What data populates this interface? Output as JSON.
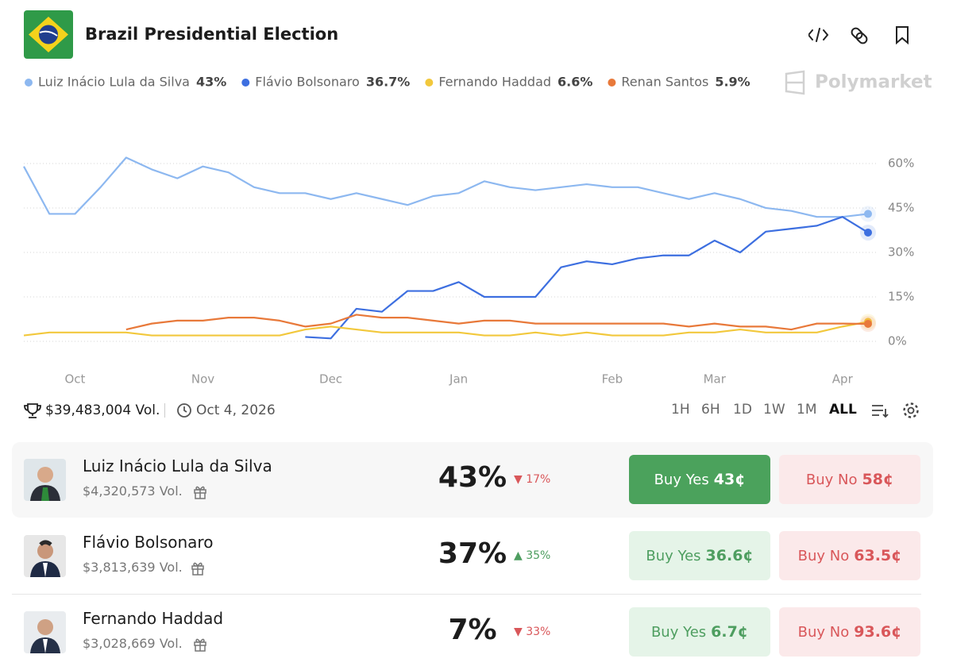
{
  "header": {
    "title": "Brazil Presidential Election",
    "brand": "Polymarket"
  },
  "chart_data": {
    "type": "line",
    "categories": [
      null,
      null,
      "Oct",
      null,
      null,
      null,
      null,
      "Nov",
      null,
      null,
      null,
      null,
      "Dec",
      null,
      null,
      null,
      null,
      "Jan",
      null,
      null,
      null,
      null,
      null,
      "Feb",
      null,
      null,
      null,
      "Mar",
      null,
      null,
      null,
      null,
      "Apr",
      null
    ],
    "series": [
      {
        "name": "Luiz Inácio Lula da Silva",
        "color": "#8db8f0",
        "value_label": "43%",
        "values": [
          59,
          43,
          43,
          52,
          62,
          58,
          55,
          59,
          57,
          52,
          50,
          50,
          48,
          50,
          48,
          46,
          49,
          50,
          54,
          52,
          51,
          52,
          53,
          52,
          52,
          50,
          48,
          50,
          48,
          45,
          44,
          42,
          42,
          43
        ]
      },
      {
        "name": "Flávio Bolsonaro",
        "color": "#3d6fe0",
        "value_label": "36.7%",
        "values": [
          null,
          null,
          null,
          null,
          null,
          null,
          null,
          null,
          null,
          null,
          null,
          1.5,
          1,
          11,
          10,
          17,
          17,
          20,
          15,
          15,
          15,
          25,
          27,
          26,
          28,
          29,
          29,
          34,
          30,
          37,
          38,
          39,
          42,
          36.7
        ]
      },
      {
        "name": "Fernando Haddad",
        "color": "#f2c83c",
        "value_label": "6.6%",
        "values": [
          2,
          3,
          3,
          3,
          3,
          2,
          2,
          2,
          2,
          2,
          2,
          4,
          5,
          4,
          3,
          3,
          3,
          3,
          2,
          2,
          3,
          2,
          3,
          2,
          2,
          2,
          3,
          3,
          4,
          3,
          3,
          3,
          5,
          6.6
        ]
      },
      {
        "name": "Renan Santos",
        "color": "#e8793a",
        "value_label": "5.9%",
        "values": [
          null,
          null,
          null,
          null,
          4,
          6,
          7,
          7,
          8,
          8,
          7,
          5,
          6,
          9,
          8,
          8,
          7,
          6,
          7,
          7,
          6,
          6,
          6,
          6,
          6,
          6,
          5,
          6,
          5,
          5,
          4,
          6,
          6,
          5.9
        ]
      }
    ],
    "ylim": [
      -2,
      64
    ],
    "yticks": [
      {
        "value": 0,
        "label": "0%"
      },
      {
        "value": 15,
        "label": "15%"
      },
      {
        "value": 30,
        "label": "30%"
      },
      {
        "value": 45,
        "label": "45%"
      },
      {
        "value": 60,
        "label": "60%"
      }
    ],
    "grid": true
  },
  "stats": {
    "volume": "$39,483,004 Vol.",
    "date": "Oct 4, 2026",
    "ranges": [
      "1H",
      "6H",
      "1D",
      "1W",
      "1M",
      "ALL"
    ]
  },
  "outcomes": [
    {
      "name": "Luiz Inácio Lula da Silva",
      "volume": "$4,320,573 Vol.",
      "chance": "43%",
      "change": "17%",
      "yes": "Buy Yes",
      "yes_price": "43¢",
      "no": "Buy No",
      "no_price": "58¢"
    },
    {
      "name": "Flávio Bolsonaro",
      "volume": "$3,813,639 Vol.",
      "chance": "37%",
      "change": "35%",
      "yes": "Buy Yes",
      "yes_price": "36.6¢",
      "no": "Buy No",
      "no_price": "63.5¢"
    },
    {
      "name": "Fernando Haddad",
      "volume": "$3,028,669 Vol.",
      "chance": "7%",
      "change": "33%",
      "yes": "Buy Yes",
      "yes_price": "6.7¢",
      "no": "Buy No",
      "no_price": "93.6¢"
    }
  ]
}
